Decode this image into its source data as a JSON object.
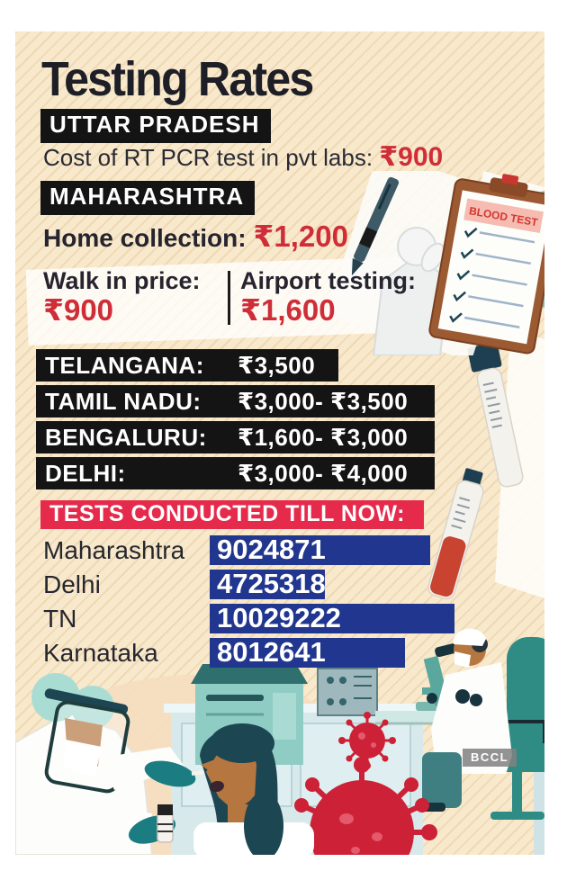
{
  "title": "Testing Rates",
  "uttar_pradesh": {
    "label": "UTTAR PRADESH",
    "cost_label": "Cost of RT PCR test in pvt labs: ",
    "cost_value": "₹900"
  },
  "maharashtra": {
    "label": "MAHARASHTRA",
    "home_label": "Home collection: ",
    "home_value": "₹1,200",
    "walkin_label": "Walk in price:",
    "walkin_value": "₹900",
    "airport_label": "Airport testing:",
    "airport_value": "₹1,600"
  },
  "rates": [
    {
      "label": "TELANGANA:",
      "value": "₹3,500"
    },
    {
      "label": "TAMIL NADU:",
      "value": "₹3,000- ₹3,500"
    },
    {
      "label": "BENGALURU:",
      "value": "₹1,600- ₹3,000"
    },
    {
      "label": "DELHI:",
      "value": "₹3,000- ₹4,000"
    }
  ],
  "chart_data": {
    "type": "bar",
    "orientation": "horizontal",
    "title": "TESTS CONDUCTED TILL NOW:",
    "categories": [
      "Maharashtra",
      "Delhi",
      "TN",
      "Karnataka"
    ],
    "values": [
      9024871,
      4725318,
      10029222,
      8012641
    ],
    "bar_color": "#21368f",
    "value_label_color": "#ffffff",
    "legend": "none",
    "grid": false
  },
  "illustration": {
    "clipboard_title": "BLOOD TEST"
  },
  "watermark": "BCCL",
  "colors": {
    "panel_background": "#f8e9cc",
    "stripe": "#e6c89a",
    "black_bar": "#141414",
    "price_red": "#cf2e38",
    "header_red": "#e62a4c",
    "bar_blue": "#21368f",
    "teal": "#2e8c85",
    "dark_navy": "#1d3f51",
    "virus_red": "#cc2136",
    "clipboard_brown": "#9c5a33"
  }
}
